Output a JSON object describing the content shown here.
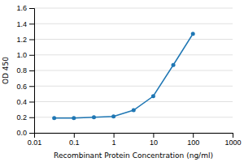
{
  "chart_data": {
    "type": "line",
    "x_label": "Recombinant Protein Concentration (ng/ml)",
    "y_label": "OD 450",
    "x": [
      0.032,
      0.1,
      0.32,
      1.0,
      3.2,
      10.0,
      32.0,
      100.0
    ],
    "values": [
      0.19,
      0.19,
      0.2,
      0.21,
      0.29,
      0.47,
      0.87,
      1.27
    ],
    "log": "x",
    "xlim": [
      0.01,
      1000
    ],
    "xticks": [
      0.01,
      0.1,
      1,
      10,
      100,
      1000
    ],
    "ylim": [
      0,
      1.6
    ],
    "yticks": [
      {
        "value": 0,
        "label": "0.0"
      },
      0.2,
      0.4,
      0.6,
      0.8,
      {
        "value": 1.0,
        "label": "1.0"
      },
      1.2,
      1.4,
      1.6
    ],
    "grid": true,
    "marker": "circle"
  }
}
